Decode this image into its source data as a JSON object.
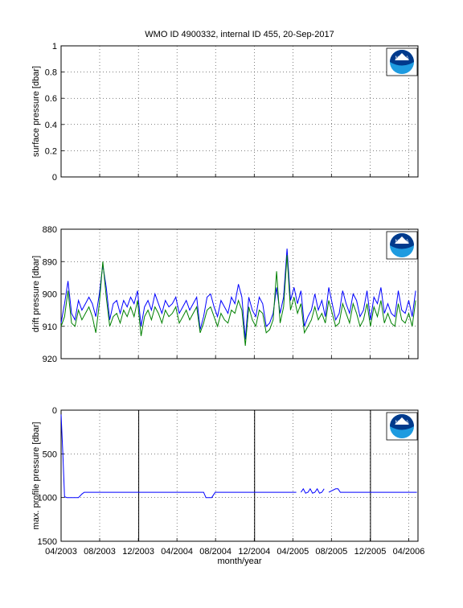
{
  "title": "WMO ID 4900332, internal ID 455, 20-Sep-2017",
  "xlabel": "month/year",
  "x_ticks": [
    "04/2003",
    "08/2003",
    "12/2003",
    "04/2004",
    "08/2004",
    "12/2004",
    "04/2005",
    "08/2005",
    "12/2005",
    "04/2006"
  ],
  "logo_label": "NOAA",
  "colors": {
    "series_blue": "#0000ff",
    "series_green": "#008000",
    "marker": "#000000",
    "logo": "#003a8c"
  },
  "chart_data": [
    {
      "type": "line",
      "ylabel": "surface pressure [dbar]",
      "ylim": [
        0,
        1
      ],
      "y_ticks": [
        "0",
        "0.2",
        "0.4",
        "0.6",
        "0.8",
        "1"
      ],
      "grid": true,
      "series": []
    },
    {
      "type": "line",
      "ylabel": "drift pressure [dbar]",
      "ylim": [
        880,
        920
      ],
      "y_reversed": true,
      "y_ticks": [
        "880",
        "890",
        "900",
        "910",
        "920"
      ],
      "grid": true,
      "series": [
        {
          "color": "#0000ff",
          "x": [
            2003.25,
            2003.28,
            2003.31,
            2003.34,
            2003.37,
            2003.4,
            2003.43,
            2003.46,
            2003.49,
            2003.52,
            2003.55,
            2003.58,
            2003.61,
            2003.64,
            2003.67,
            2003.7,
            2003.73,
            2003.76,
            2003.79,
            2003.82,
            2003.85,
            2003.88,
            2003.91,
            2003.94,
            2003.97,
            2004.0,
            2004.03,
            2004.06,
            2004.09,
            2004.12,
            2004.15,
            2004.18,
            2004.21,
            2004.24,
            2004.27,
            2004.3,
            2004.33,
            2004.36,
            2004.39,
            2004.42,
            2004.45,
            2004.48,
            2004.51,
            2004.54,
            2004.57,
            2004.6,
            2004.63,
            2004.66,
            2004.69,
            2004.72,
            2004.75,
            2004.78,
            2004.81,
            2004.84,
            2004.87,
            2004.9,
            2004.93,
            2004.96,
            2004.99,
            2005.02,
            2005.05,
            2005.08,
            2005.11,
            2005.14,
            2005.17,
            2005.2,
            2005.23,
            2005.26,
            2005.29,
            2005.32,
            2005.35,
            2005.38,
            2005.41,
            2005.44,
            2005.47,
            2005.5,
            2005.53,
            2005.56,
            2005.59,
            2005.62,
            2005.65,
            2005.68,
            2005.71,
            2005.74,
            2005.77,
            2005.8,
            2005.83,
            2005.86,
            2005.89,
            2005.92,
            2005.95,
            2005.98,
            2006.01,
            2006.04,
            2006.07,
            2006.1,
            2006.13,
            2006.16,
            2006.19,
            2006.22,
            2006.25,
            2006.28,
            2006.31
          ],
          "y": [
            909,
            903,
            896,
            906,
            908,
            902,
            905,
            903,
            901,
            903,
            907,
            900,
            891,
            898,
            908,
            903,
            902,
            906,
            902,
            904,
            901,
            903,
            899,
            910,
            904,
            902,
            905,
            900,
            903,
            906,
            902,
            904,
            903,
            901,
            906,
            904,
            902,
            905,
            903,
            901,
            911,
            907,
            901,
            900,
            904,
            907,
            902,
            904,
            906,
            901,
            903,
            897,
            901,
            914,
            901,
            905,
            907,
            901,
            903,
            910,
            909,
            906,
            898,
            906,
            901,
            886,
            902,
            898,
            903,
            899,
            910,
            907,
            905,
            900,
            905,
            902,
            907,
            898,
            903,
            908,
            906,
            899,
            903,
            906,
            900,
            902,
            907,
            905,
            899,
            908,
            901,
            903,
            898,
            906,
            903,
            906,
            907,
            899,
            905,
            906,
            902,
            907,
            899
          ]
        },
        {
          "color": "#008000",
          "x": [
            2003.25,
            2003.28,
            2003.31,
            2003.34,
            2003.37,
            2003.4,
            2003.43,
            2003.46,
            2003.49,
            2003.52,
            2003.55,
            2003.58,
            2003.61,
            2003.64,
            2003.67,
            2003.7,
            2003.73,
            2003.76,
            2003.79,
            2003.82,
            2003.85,
            2003.88,
            2003.91,
            2003.94,
            2003.97,
            2004.0,
            2004.03,
            2004.06,
            2004.09,
            2004.12,
            2004.15,
            2004.18,
            2004.21,
            2004.24,
            2004.27,
            2004.3,
            2004.33,
            2004.36,
            2004.39,
            2004.42,
            2004.45,
            2004.48,
            2004.51,
            2004.54,
            2004.57,
            2004.6,
            2004.63,
            2004.66,
            2004.69,
            2004.72,
            2004.75,
            2004.78,
            2004.81,
            2004.84,
            2004.87,
            2004.9,
            2004.93,
            2004.96,
            2004.99,
            2005.02,
            2005.05,
            2005.08,
            2005.11,
            2005.14,
            2005.17,
            2005.2,
            2005.23,
            2005.26,
            2005.29,
            2005.32,
            2005.35,
            2005.38,
            2005.41,
            2005.44,
            2005.47,
            2005.5,
            2005.53,
            2005.56,
            2005.59,
            2005.62,
            2005.65,
            2005.68,
            2005.71,
            2005.74,
            2005.77,
            2005.8,
            2005.83,
            2005.86,
            2005.89,
            2005.92,
            2005.95,
            2005.98,
            2006.01,
            2006.04,
            2006.07,
            2006.1,
            2006.13,
            2006.16,
            2006.19,
            2006.22,
            2006.25,
            2006.28,
            2006.31
          ],
          "y": [
            910,
            907,
            899,
            909,
            910,
            905,
            908,
            906,
            904,
            907,
            912,
            903,
            890,
            901,
            910,
            907,
            906,
            909,
            905,
            907,
            904,
            907,
            902,
            913,
            907,
            905,
            908,
            904,
            906,
            909,
            905,
            907,
            906,
            904,
            909,
            907,
            905,
            908,
            906,
            904,
            912,
            909,
            905,
            904,
            907,
            910,
            906,
            908,
            909,
            905,
            906,
            902,
            905,
            916,
            904,
            908,
            910,
            905,
            906,
            912,
            911,
            908,
            893,
            909,
            904,
            888,
            905,
            901,
            906,
            903,
            912,
            910,
            908,
            904,
            908,
            906,
            909,
            902,
            906,
            910,
            909,
            903,
            906,
            909,
            903,
            906,
            910,
            908,
            903,
            910,
            904,
            907,
            902,
            909,
            906,
            909,
            910,
            903,
            908,
            909,
            906,
            910,
            902
          ]
        }
      ]
    },
    {
      "type": "line",
      "ylabel": "max. profile pressure [dbar]",
      "ylim": [
        0,
        1500
      ],
      "y_reversed": true,
      "y_ticks": [
        "0",
        "500",
        "1000",
        "1500"
      ],
      "grid": true,
      "vertical_markers": [
        2003.92,
        2004.92,
        2005.92
      ],
      "series": [
        {
          "color": "#0000ff",
          "x": [
            2003.25,
            2003.265,
            2003.28,
            2003.3,
            2003.35,
            2003.4,
            2003.43,
            2003.45,
            2004.48,
            2004.5,
            2004.55,
            2004.57,
            2004.58,
            2005.28,
            null,
            2005.32,
            2005.34,
            2005.36,
            2005.38,
            2005.4,
            2005.42,
            2005.44,
            2005.46,
            2005.48,
            2005.5,
            2005.52,
            null,
            2005.56,
            2005.62,
            2005.64,
            2005.66,
            2006.32
          ],
          "y": [
            50,
            500,
            990,
            1000,
            1000,
            1000,
            960,
            940,
            940,
            1000,
            1000,
            960,
            940,
            940,
            null,
            940,
            900,
            950,
            940,
            900,
            950,
            940,
            900,
            950,
            940,
            900,
            null,
            940,
            900,
            900,
            940,
            940
          ]
        }
      ]
    }
  ]
}
